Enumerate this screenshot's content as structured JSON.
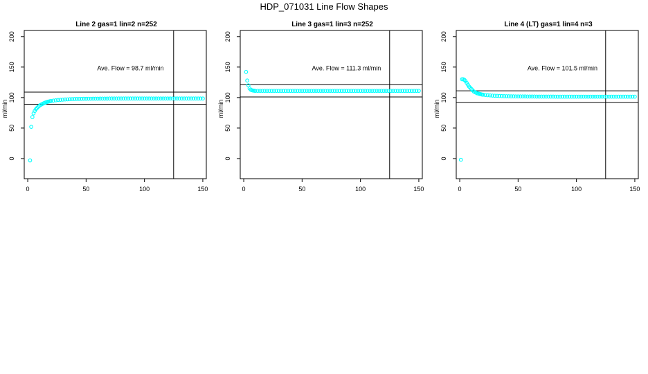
{
  "title": "HDP_071031  Line Flow Shapes",
  "chart_data": [
    {
      "type": "scatter",
      "title": "Line 2 gas=1 lin=2 n=252",
      "xlabel": "",
      "ylabel": "ml/min",
      "xlim": [
        -3,
        153
      ],
      "ylim": [
        -33,
        210
      ],
      "xticks": [
        0,
        50,
        100,
        150
      ],
      "yticks": [
        0,
        50,
        100,
        150,
        200
      ],
      "annotation": "Ave. Flow =  98.7  ml/min",
      "annotation_at": [
        88,
        148
      ],
      "hlines": [
        109,
        89
      ],
      "vline": 125,
      "marker_color": "#00ffff",
      "series": [
        {
          "x": [
            2,
            3,
            4,
            5,
            6,
            7,
            8,
            9,
            10,
            11,
            12,
            13,
            14,
            15,
            16,
            17,
            18,
            19,
            20,
            22,
            24,
            26,
            28,
            30,
            32,
            34,
            36,
            38,
            40,
            42,
            44,
            46,
            48,
            50,
            52,
            54,
            56,
            58,
            60,
            62,
            64,
            66,
            68,
            70,
            72,
            74,
            76,
            78,
            80,
            82,
            84,
            86,
            88,
            90,
            92,
            94,
            96,
            98,
            100,
            102,
            104,
            106,
            108,
            110,
            112,
            114,
            116,
            118,
            120,
            122,
            124,
            126,
            128,
            130,
            132,
            134,
            136,
            138,
            140,
            142,
            144,
            146,
            148,
            150
          ],
          "y": [
            -3,
            52,
            68,
            74,
            78,
            81,
            83,
            85,
            86.5,
            88,
            89,
            90,
            91,
            91.8,
            92.5,
            93,
            93.5,
            94,
            94.4,
            95,
            95.5,
            96,
            96.3,
            96.6,
            96.9,
            97.1,
            97.3,
            97.5,
            97.6,
            97.7,
            97.8,
            97.9,
            98,
            98,
            98.1,
            98.1,
            98.2,
            98.2,
            98.2,
            98.3,
            98.3,
            98.3,
            98.3,
            98.4,
            98.4,
            98.4,
            98.4,
            98.4,
            98.4,
            98.5,
            98.5,
            98.5,
            98.5,
            98.5,
            98.5,
            98.5,
            98.5,
            98.5,
            98.5,
            98.5,
            98.5,
            98.5,
            98.5,
            98.5,
            98.5,
            98.5,
            98.5,
            98.5,
            98.5,
            98.5,
            98.5,
            98.5,
            98.5,
            98.5,
            98.5,
            98.5,
            98.5,
            98.5,
            98.5,
            98.5,
            98.5,
            98.5,
            98.5,
            98.5
          ]
        }
      ]
    },
    {
      "type": "scatter",
      "title": "Line 3 gas=1 lin=3 n=252",
      "xlabel": "",
      "ylabel": "ml/min",
      "xlim": [
        -3,
        153
      ],
      "ylim": [
        -33,
        210
      ],
      "xticks": [
        0,
        50,
        100,
        150
      ],
      "yticks": [
        0,
        50,
        100,
        150,
        200
      ],
      "annotation": "Ave. Flow =  111.3  ml/min",
      "annotation_at": [
        88,
        148
      ],
      "hlines": [
        121,
        101
      ],
      "vline": 125,
      "marker_color": "#00ffff",
      "series": [
        {
          "x": [
            2,
            3,
            4,
            5,
            6,
            7,
            8,
            9,
            10,
            12,
            14,
            16,
            18,
            20,
            22,
            24,
            26,
            28,
            30,
            32,
            34,
            36,
            38,
            40,
            42,
            44,
            46,
            48,
            50,
            52,
            54,
            56,
            58,
            60,
            62,
            64,
            66,
            68,
            70,
            72,
            74,
            76,
            78,
            80,
            82,
            84,
            86,
            88,
            90,
            92,
            94,
            96,
            98,
            100,
            102,
            104,
            106,
            108,
            110,
            112,
            114,
            116,
            118,
            120,
            122,
            124,
            126,
            128,
            130,
            132,
            134,
            136,
            138,
            140,
            142,
            144,
            146,
            148,
            150
          ],
          "y": [
            142,
            128,
            120,
            115,
            113,
            112,
            111.5,
            111.2,
            111,
            111,
            111,
            111,
            111,
            111,
            111,
            111,
            111,
            111,
            111,
            111,
            111,
            111,
            111,
            111,
            111,
            111,
            111,
            111,
            111,
            111,
            111,
            111,
            111,
            111,
            111,
            111,
            111,
            111,
            111,
            111,
            111,
            111,
            111,
            111,
            111,
            111,
            111,
            111,
            111,
            111,
            111,
            111,
            111,
            111,
            111,
            111,
            111,
            111,
            111,
            111,
            111,
            111,
            111,
            111,
            111,
            111,
            111,
            111,
            111,
            111,
            111,
            111,
            111,
            111,
            111,
            111,
            111,
            111,
            111
          ]
        }
      ]
    },
    {
      "type": "scatter",
      "title": "Line 4 (LT) gas=1 lin=4 n=3",
      "xlabel": "",
      "ylabel": "ml/min",
      "xlim": [
        -3,
        153
      ],
      "ylim": [
        -33,
        210
      ],
      "xticks": [
        0,
        50,
        100,
        150
      ],
      "yticks": [
        0,
        50,
        100,
        150,
        200
      ],
      "annotation": "Ave. Flow =  101.5  ml/min",
      "annotation_at": [
        88,
        148
      ],
      "hlines": [
        111,
        92
      ],
      "vline": 125,
      "marker_color": "#00ffff",
      "series": [
        {
          "x": [
            1,
            2,
            3,
            4,
            5,
            6,
            7,
            8,
            9,
            10,
            11,
            12,
            13,
            14,
            15,
            16,
            17,
            18,
            19,
            20,
            22,
            24,
            26,
            28,
            30,
            32,
            34,
            36,
            38,
            40,
            42,
            44,
            46,
            48,
            50,
            52,
            54,
            56,
            58,
            60,
            62,
            64,
            66,
            68,
            70,
            72,
            74,
            76,
            78,
            80,
            82,
            84,
            86,
            88,
            90,
            92,
            94,
            96,
            98,
            100,
            102,
            104,
            106,
            108,
            110,
            112,
            114,
            116,
            118,
            120,
            122,
            124,
            126,
            128,
            130,
            132,
            134,
            136,
            138,
            140,
            142,
            144,
            146,
            148,
            150
          ],
          "y": [
            -2,
            130,
            130,
            129,
            127,
            124,
            121,
            118,
            116,
            114,
            112,
            110,
            109,
            108,
            107,
            106.5,
            106,
            105.5,
            105,
            104.7,
            104.2,
            103.8,
            103.5,
            103.2,
            103,
            102.8,
            102.6,
            102.4,
            102.3,
            102.2,
            102.1,
            102,
            102,
            101.9,
            101.9,
            101.8,
            101.8,
            101.8,
            101.7,
            101.7,
            101.7,
            101.7,
            101.6,
            101.6,
            101.6,
            101.6,
            101.6,
            101.6,
            101.6,
            101.6,
            101.5,
            101.5,
            101.5,
            101.5,
            101.5,
            101.5,
            101.5,
            101.5,
            101.5,
            101.5,
            101.5,
            101.5,
            101.5,
            101.5,
            101.5,
            101.5,
            101.5,
            101.5,
            101.5,
            101.5,
            101.5,
            101.5,
            101.5,
            101.5,
            101.5,
            101.5,
            101.5,
            101.5,
            101.5,
            101.5,
            101.5,
            101.5,
            101.5,
            101.5,
            101.5
          ]
        }
      ]
    }
  ]
}
